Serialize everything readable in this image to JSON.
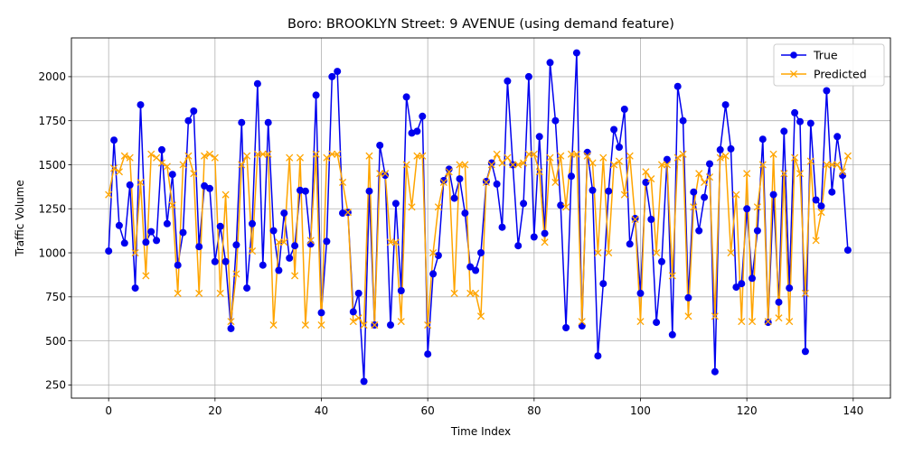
{
  "chart_data": {
    "type": "line",
    "title": "Boro: BROOKLYN Street: 9 AVENUE (using demand feature)",
    "xlabel": "Time Index",
    "ylabel": "Traffic Volume",
    "xlim": [
      -7,
      147
    ],
    "ylim": [
      175,
      2220
    ],
    "xticks": [
      0,
      20,
      40,
      60,
      80,
      100,
      120,
      140
    ],
    "yticks": [
      250,
      500,
      750,
      1000,
      1250,
      1500,
      1750,
      2000
    ],
    "grid": true,
    "legend_position": "top-right",
    "x": [
      0,
      1,
      2,
      3,
      4,
      5,
      6,
      7,
      8,
      9,
      10,
      11,
      12,
      13,
      14,
      15,
      16,
      17,
      18,
      19,
      20,
      21,
      22,
      23,
      24,
      25,
      26,
      27,
      28,
      29,
      30,
      31,
      32,
      33,
      34,
      35,
      36,
      37,
      38,
      39,
      40,
      41,
      42,
      43,
      44,
      45,
      46,
      47,
      48,
      49,
      50,
      51,
      52,
      53,
      54,
      55,
      56,
      57,
      58,
      59,
      60,
      61,
      62,
      63,
      64,
      65,
      66,
      67,
      68,
      69,
      70,
      71,
      72,
      73,
      74,
      75,
      76,
      77,
      78,
      79,
      80,
      81,
      82,
      83,
      84,
      85,
      86,
      87,
      88,
      89,
      90,
      91,
      92,
      93,
      94,
      95,
      96,
      97,
      98,
      99,
      100,
      101,
      102,
      103,
      104,
      105,
      106,
      107,
      108,
      109,
      110,
      111,
      112,
      113,
      114,
      115,
      116,
      117,
      118,
      119,
      120,
      121,
      122,
      123,
      124,
      125,
      126,
      127,
      128,
      129,
      130,
      131,
      132,
      133,
      134,
      135,
      136,
      137,
      138,
      139
    ],
    "series": [
      {
        "name": "True",
        "color": "#0000ee",
        "marker": "circle",
        "values": [
          1010,
          1640,
          1155,
          1055,
          1385,
          800,
          1840,
          1060,
          1120,
          1070,
          1585,
          1165,
          1445,
          930,
          1115,
          1750,
          1805,
          1035,
          1380,
          1365,
          950,
          1150,
          950,
          570,
          1045,
          1740,
          800,
          1165,
          1960,
          930,
          1740,
          1125,
          900,
          1225,
          970,
          1040,
          1355,
          1350,
          1050,
          1895,
          660,
          1065,
          2000,
          2030,
          1225,
          1230,
          665,
          770,
          270,
          1350,
          590,
          1610,
          1440,
          590,
          1280,
          785,
          1885,
          1680,
          1690,
          1775,
          425,
          880,
          985,
          1410,
          1475,
          1310,
          1420,
          1225,
          920,
          900,
          1000,
          1405,
          1510,
          1390,
          1145,
          1975,
          1500,
          1040,
          1280,
          2000,
          1090,
          1660,
          1110,
          2080,
          1750,
          1270,
          575,
          1435,
          2135,
          585,
          1570,
          1355,
          415,
          825,
          1350,
          1700,
          1600,
          1815,
          1050,
          1195,
          770,
          1400,
          1190,
          605,
          950,
          1530,
          535,
          1945,
          1750,
          745,
          1345,
          1125,
          1315,
          1505,
          325,
          1585,
          1840,
          1590,
          805,
          825,
          1250,
          855,
          1125,
          1645,
          605,
          1330,
          720,
          1690,
          800,
          1795,
          1745,
          440,
          1735,
          1300,
          1265,
          1920,
          1345,
          1660,
          1440,
          1015
        ]
      },
      {
        "name": "Predicted",
        "color": "#ffa500",
        "marker": "x",
        "values": [
          1330,
          1480,
          1460,
          1550,
          1540,
          1000,
          1400,
          870,
          1560,
          1540,
          1510,
          1490,
          1270,
          770,
          1500,
          1550,
          1450,
          770,
          1550,
          1560,
          1540,
          770,
          1330,
          610,
          880,
          1500,
          1550,
          1010,
          1560,
          1560,
          1560,
          590,
          1060,
          1060,
          1540,
          870,
          1540,
          590,
          1070,
          1560,
          590,
          1540,
          1560,
          1560,
          1400,
          1230,
          610,
          630,
          590,
          1550,
          590,
          1450,
          1450,
          1060,
          1060,
          610,
          1500,
          1260,
          1550,
          1550,
          590,
          1000,
          1260,
          1400,
          1460,
          770,
          1500,
          1500,
          770,
          770,
          640,
          1400,
          1500,
          1560,
          1510,
          1540,
          1500,
          1500,
          1510,
          1560,
          1560,
          1460,
          1060,
          1540,
          1400,
          1550,
          1260,
          1560,
          1560,
          610,
          1550,
          1510,
          1000,
          1540,
          1000,
          1500,
          1520,
          1330,
          1550,
          1190,
          610,
          1460,
          1420,
          1000,
          1500,
          1500,
          870,
          1540,
          1560,
          640,
          1260,
          1450,
          1400,
          1430,
          640,
          1540,
          1550,
          1000,
          1330,
          610,
          1450,
          610,
          1260,
          1500,
          610,
          1560,
          630,
          1450,
          610,
          1540,
          1450,
          770,
          1520,
          1070,
          1230,
          1500,
          1500,
          1500,
          1460,
          1550
        ]
      }
    ]
  }
}
